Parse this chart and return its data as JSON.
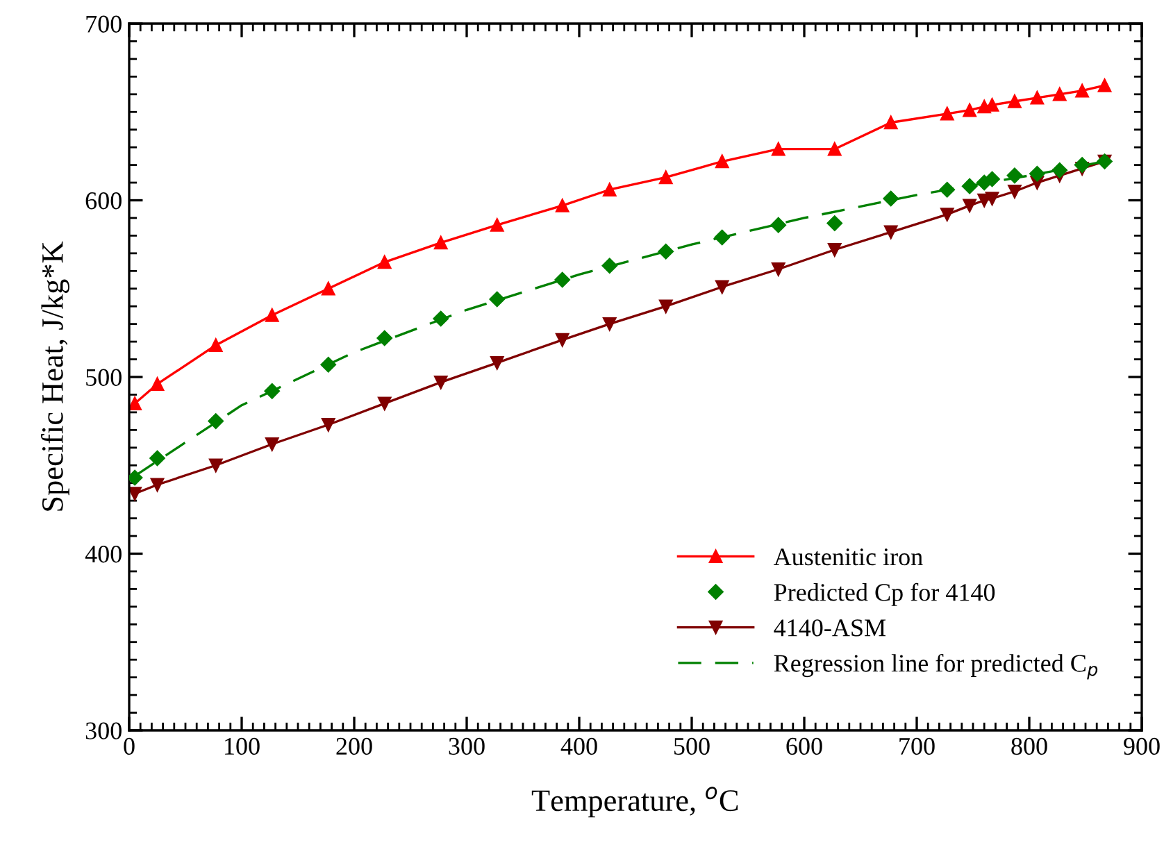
{
  "chart_data": {
    "type": "line",
    "xlabel": "Temperature, $^{o}$C",
    "ylabel": "Specific Heat, J/kg*K",
    "xlim": [
      0,
      900
    ],
    "xticks": [
      0,
      100,
      200,
      300,
      400,
      500,
      600,
      700,
      800,
      900
    ],
    "ylim": [
      300,
      700
    ],
    "yticks": [
      300,
      400,
      500,
      600,
      700
    ],
    "grid": false,
    "legend": "bottom right",
    "series": [
      {
        "name": "Austenitic iron",
        "color": "#ff0000",
        "marker": "triangle",
        "line_style": "solid",
        "x": [
          5,
          25,
          77,
          127,
          177,
          227,
          277,
          327,
          385,
          427,
          477,
          527,
          577,
          627,
          677,
          727,
          747,
          760,
          767,
          787,
          807,
          827,
          847,
          867
        ],
        "values": [
          485,
          496,
          518,
          535,
          550,
          565,
          576,
          586,
          597,
          606,
          613,
          622,
          629,
          629,
          644,
          649,
          651,
          653,
          654,
          656,
          658,
          660,
          662,
          665
        ]
      },
      {
        "name": "Predicted Cp for 4140",
        "type": "scatter",
        "color": "#008000",
        "marker": "diamond",
        "x": [
          5,
          25,
          77,
          127,
          177,
          227,
          277,
          327,
          385,
          427,
          477,
          527,
          577,
          627,
          677,
          727,
          747,
          760,
          767,
          787,
          807,
          827,
          847,
          867
        ],
        "values": [
          443,
          454,
          475,
          492,
          507,
          522,
          533,
          544,
          555,
          563,
          571,
          579,
          586,
          587,
          601,
          606,
          608,
          610,
          612,
          614,
          615,
          617,
          620,
          622
        ]
      },
      {
        "name": "4140-ASM",
        "color": "#800000",
        "marker": "triangle_down",
        "line_style": "solid",
        "x": [
          5,
          25,
          77,
          127,
          177,
          227,
          277,
          327,
          385,
          427,
          477,
          527,
          577,
          627,
          677,
          727,
          747,
          760,
          767,
          787,
          807,
          827,
          847,
          867
        ],
        "values": [
          434,
          439,
          450,
          462,
          473,
          485,
          497,
          508,
          521,
          530,
          540,
          551,
          561,
          572,
          582,
          592,
          597,
          600,
          601,
          605,
          610,
          614,
          618,
          622
        ]
      },
      {
        "name": "Regression line for predicted C$_{p}$",
        "color": "#008000",
        "marker": "none",
        "line_style": "dashed",
        "x": [
          5,
          100,
          200,
          300,
          400,
          500,
          600,
          700,
          800,
          867
        ],
        "values": [
          444,
          484,
          514,
          538,
          558,
          575,
          590,
          603,
          614,
          622
        ]
      }
    ]
  }
}
